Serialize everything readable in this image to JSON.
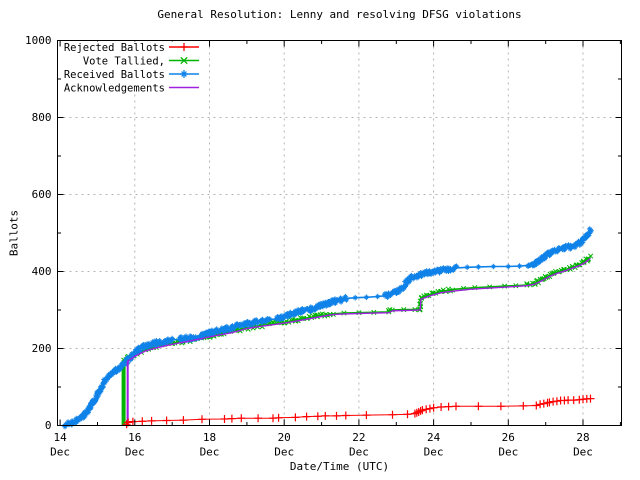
{
  "colors": {
    "background": "#ffffff",
    "frame": "#000000",
    "grid": "#b4b4b4",
    "rejected": "#ff0000",
    "tallied": "#00b400",
    "received": "#0e82e8",
    "acknowledgements": "#a020e0"
  },
  "chart_data": {
    "type": "line",
    "title": "General Resolution: Lenny and resolving DFSG violations",
    "xlabel": "Date/Time (UTC)",
    "ylabel": "Ballots",
    "grid": true,
    "legend_position": "top-left inside",
    "xlim": [
      13.93,
      29.03
    ],
    "ylim": [
      0,
      1000
    ],
    "x_unit": "day of December (UTC)",
    "x_ticks": [
      {
        "day": "14",
        "month": "Dec",
        "value": 14
      },
      {
        "day": "16",
        "month": "Dec",
        "value": 16
      },
      {
        "day": "18",
        "month": "Dec",
        "value": 18
      },
      {
        "day": "20",
        "month": "Dec",
        "value": 20
      },
      {
        "day": "22",
        "month": "Dec",
        "value": 22
      },
      {
        "day": "24",
        "month": "Dec",
        "value": 24
      },
      {
        "day": "26",
        "month": "Dec",
        "value": 26
      },
      {
        "day": "28",
        "month": "Dec",
        "value": 28
      }
    ],
    "x_minor_ticks": [
      15,
      17,
      19,
      21,
      23,
      25,
      27,
      29
    ],
    "y_ticks": [
      {
        "label": "0",
        "value": 0
      },
      {
        "label": "200",
        "value": 200
      },
      {
        "label": "400",
        "value": 400
      },
      {
        "label": "600",
        "value": 600
      },
      {
        "label": "800",
        "value": 800
      },
      {
        "label": "1000",
        "value": 1000
      }
    ],
    "y_minor_ticks": [
      100,
      300,
      500,
      700,
      900
    ],
    "series": [
      {
        "name": "Vote Tallied,",
        "color": "#00b400",
        "marker": "cross",
        "line_width": 1.6,
        "points": [
          [
            15.69,
            0
          ],
          [
            15.7,
            170
          ],
          [
            15.8,
            175
          ],
          [
            15.95,
            182
          ],
          [
            16.1,
            191
          ],
          [
            16.3,
            198
          ],
          [
            16.5,
            204
          ],
          [
            16.7,
            209
          ],
          [
            17.0,
            214
          ],
          [
            17.3,
            219
          ],
          [
            17.6,
            224
          ],
          [
            17.9,
            230
          ],
          [
            18.2,
            237
          ],
          [
            18.5,
            243
          ],
          [
            18.8,
            249
          ],
          [
            19.1,
            255
          ],
          [
            19.4,
            260
          ],
          [
            19.7,
            264
          ],
          [
            20.0,
            268
          ],
          [
            20.3,
            274
          ],
          [
            20.6,
            279
          ],
          [
            20.9,
            284
          ],
          [
            21.1,
            287
          ],
          [
            21.3,
            290
          ],
          [
            21.6,
            292
          ],
          [
            22.0,
            293
          ],
          [
            22.4,
            294
          ],
          [
            22.8,
            295
          ],
          [
            22.9,
            300
          ],
          [
            23.2,
            301
          ],
          [
            23.5,
            301
          ],
          [
            23.64,
            302
          ],
          [
            23.66,
            330
          ],
          [
            23.8,
            337
          ],
          [
            24.0,
            343
          ],
          [
            24.2,
            348
          ],
          [
            24.5,
            353
          ],
          [
            24.8,
            356
          ],
          [
            25.1,
            358
          ],
          [
            25.5,
            360
          ],
          [
            25.9,
            362
          ],
          [
            26.2,
            363
          ],
          [
            26.5,
            365
          ],
          [
            26.7,
            369
          ],
          [
            26.8,
            374
          ],
          [
            26.9,
            379
          ],
          [
            27.0,
            385
          ],
          [
            27.1,
            390
          ],
          [
            27.2,
            394
          ],
          [
            27.35,
            399
          ],
          [
            27.5,
            404
          ],
          [
            27.65,
            409
          ],
          [
            27.8,
            414
          ],
          [
            27.9,
            418
          ],
          [
            28.0,
            424
          ],
          [
            28.1,
            430
          ],
          [
            28.15,
            434
          ],
          [
            28.2,
            439
          ]
        ]
      },
      {
        "name": "Received Ballots",
        "color": "#0e82e8",
        "marker": "asterisk",
        "line_width": 1.6,
        "points": [
          [
            14.15,
            2
          ],
          [
            14.3,
            7
          ],
          [
            14.45,
            14
          ],
          [
            14.6,
            24
          ],
          [
            14.7,
            34
          ],
          [
            14.8,
            48
          ],
          [
            14.9,
            62
          ],
          [
            15.0,
            80
          ],
          [
            15.1,
            100
          ],
          [
            15.2,
            116
          ],
          [
            15.3,
            128
          ],
          [
            15.4,
            137
          ],
          [
            15.5,
            144
          ],
          [
            15.6,
            150
          ],
          [
            15.7,
            159
          ],
          [
            15.8,
            168
          ],
          [
            15.9,
            177
          ],
          [
            16.0,
            189
          ],
          [
            16.1,
            198
          ],
          [
            16.25,
            205
          ],
          [
            16.4,
            210
          ],
          [
            16.6,
            215
          ],
          [
            16.8,
            219
          ],
          [
            17.0,
            222
          ],
          [
            17.2,
            224
          ],
          [
            17.5,
            228
          ],
          [
            17.8,
            234
          ],
          [
            18.0,
            240
          ],
          [
            18.2,
            245
          ],
          [
            18.4,
            250
          ],
          [
            18.6,
            255
          ],
          [
            18.8,
            259
          ],
          [
            19.0,
            264
          ],
          [
            19.2,
            268
          ],
          [
            19.4,
            272
          ],
          [
            19.6,
            275
          ],
          [
            19.8,
            277
          ],
          [
            20.0,
            282
          ],
          [
            20.15,
            288
          ],
          [
            20.3,
            293
          ],
          [
            20.5,
            298
          ],
          [
            20.7,
            302
          ],
          [
            20.9,
            308
          ],
          [
            21.1,
            315
          ],
          [
            21.3,
            321
          ],
          [
            21.5,
            327
          ],
          [
            21.65,
            330
          ],
          [
            21.9,
            332
          ],
          [
            22.2,
            333
          ],
          [
            22.5,
            335
          ],
          [
            22.7,
            337
          ],
          [
            22.85,
            340
          ],
          [
            23.0,
            347
          ],
          [
            23.1,
            352
          ],
          [
            23.2,
            362
          ],
          [
            23.3,
            375
          ],
          [
            23.4,
            384
          ],
          [
            23.55,
            389
          ],
          [
            23.7,
            393
          ],
          [
            23.9,
            398
          ],
          [
            24.1,
            402
          ],
          [
            24.35,
            406
          ],
          [
            24.6,
            409
          ],
          [
            24.9,
            411
          ],
          [
            25.2,
            412
          ],
          [
            25.6,
            413
          ],
          [
            26.0,
            413
          ],
          [
            26.3,
            414
          ],
          [
            26.55,
            416
          ],
          [
            26.7,
            420
          ],
          [
            26.8,
            426
          ],
          [
            26.9,
            433
          ],
          [
            27.0,
            440
          ],
          [
            27.1,
            447
          ],
          [
            27.2,
            453
          ],
          [
            27.35,
            458
          ],
          [
            27.5,
            461
          ],
          [
            27.65,
            464
          ],
          [
            27.8,
            468
          ],
          [
            27.9,
            474
          ],
          [
            28.0,
            482
          ],
          [
            28.05,
            487
          ],
          [
            28.1,
            492
          ],
          [
            28.15,
            499
          ],
          [
            28.2,
            508
          ]
        ]
      },
      {
        "name": "Acknowledgements",
        "color": "#a020e0",
        "marker": "none",
        "line_width": 1.4,
        "points": [
          [
            15.8,
            0
          ],
          [
            15.81,
            167
          ],
          [
            16.0,
            180
          ],
          [
            16.3,
            194
          ],
          [
            16.6,
            202
          ],
          [
            17.0,
            211
          ],
          [
            17.4,
            218
          ],
          [
            17.8,
            226
          ],
          [
            18.2,
            234
          ],
          [
            18.6,
            241
          ],
          [
            19.0,
            252
          ],
          [
            19.4,
            258
          ],
          [
            19.8,
            263
          ],
          [
            20.2,
            269
          ],
          [
            20.6,
            276
          ],
          [
            21.0,
            283
          ],
          [
            21.3,
            288
          ],
          [
            21.6,
            290
          ],
          [
            22.0,
            291
          ],
          [
            22.4,
            292
          ],
          [
            22.8,
            293
          ],
          [
            22.9,
            298
          ],
          [
            23.3,
            299
          ],
          [
            23.64,
            300
          ],
          [
            23.66,
            328
          ],
          [
            23.9,
            337
          ],
          [
            24.2,
            345
          ],
          [
            24.6,
            350
          ],
          [
            25.0,
            354
          ],
          [
            25.5,
            357
          ],
          [
            26.0,
            360
          ],
          [
            26.5,
            363
          ],
          [
            26.7,
            367
          ],
          [
            26.9,
            376
          ],
          [
            27.1,
            387
          ],
          [
            27.3,
            395
          ],
          [
            27.5,
            401
          ],
          [
            27.7,
            408
          ],
          [
            27.9,
            415
          ],
          [
            28.05,
            423
          ],
          [
            28.2,
            434
          ]
        ]
      },
      {
        "name": "Rejected Ballots",
        "color": "#ff0000",
        "marker": "plus",
        "line_width": 1.0,
        "points": [
          [
            15.78,
            3
          ],
          [
            15.82,
            8
          ],
          [
            15.95,
            10
          ],
          [
            16.2,
            11
          ],
          [
            16.45,
            12
          ],
          [
            16.85,
            13
          ],
          [
            17.3,
            14
          ],
          [
            17.8,
            16
          ],
          [
            18.4,
            17
          ],
          [
            18.6,
            18
          ],
          [
            18.85,
            19
          ],
          [
            19.3,
            19
          ],
          [
            19.7,
            19
          ],
          [
            19.85,
            20
          ],
          [
            20.3,
            21
          ],
          [
            20.6,
            23
          ],
          [
            20.9,
            24
          ],
          [
            21.1,
            25
          ],
          [
            21.4,
            25
          ],
          [
            21.65,
            26
          ],
          [
            22.2,
            27
          ],
          [
            22.9,
            28
          ],
          [
            23.3,
            29
          ],
          [
            23.5,
            31
          ],
          [
            23.55,
            33
          ],
          [
            23.6,
            35
          ],
          [
            23.65,
            38
          ],
          [
            23.7,
            40
          ],
          [
            23.8,
            42
          ],
          [
            23.9,
            44
          ],
          [
            24.0,
            46
          ],
          [
            24.2,
            48
          ],
          [
            24.4,
            49
          ],
          [
            24.6,
            50
          ],
          [
            25.2,
            50
          ],
          [
            25.8,
            50
          ],
          [
            26.4,
            51
          ],
          [
            26.75,
            52
          ],
          [
            26.85,
            55
          ],
          [
            26.95,
            57
          ],
          [
            27.05,
            59
          ],
          [
            27.1,
            60
          ],
          [
            27.2,
            62
          ],
          [
            27.3,
            63
          ],
          [
            27.4,
            65
          ],
          [
            27.5,
            65
          ],
          [
            27.6,
            66
          ],
          [
            27.75,
            66
          ],
          [
            27.9,
            67
          ],
          [
            28.0,
            68
          ],
          [
            28.1,
            69
          ],
          [
            28.2,
            70
          ]
        ]
      }
    ],
    "legend": [
      "Rejected Ballots",
      "Vote Tallied,",
      "Received Ballots",
      "Acknowledgements"
    ]
  }
}
